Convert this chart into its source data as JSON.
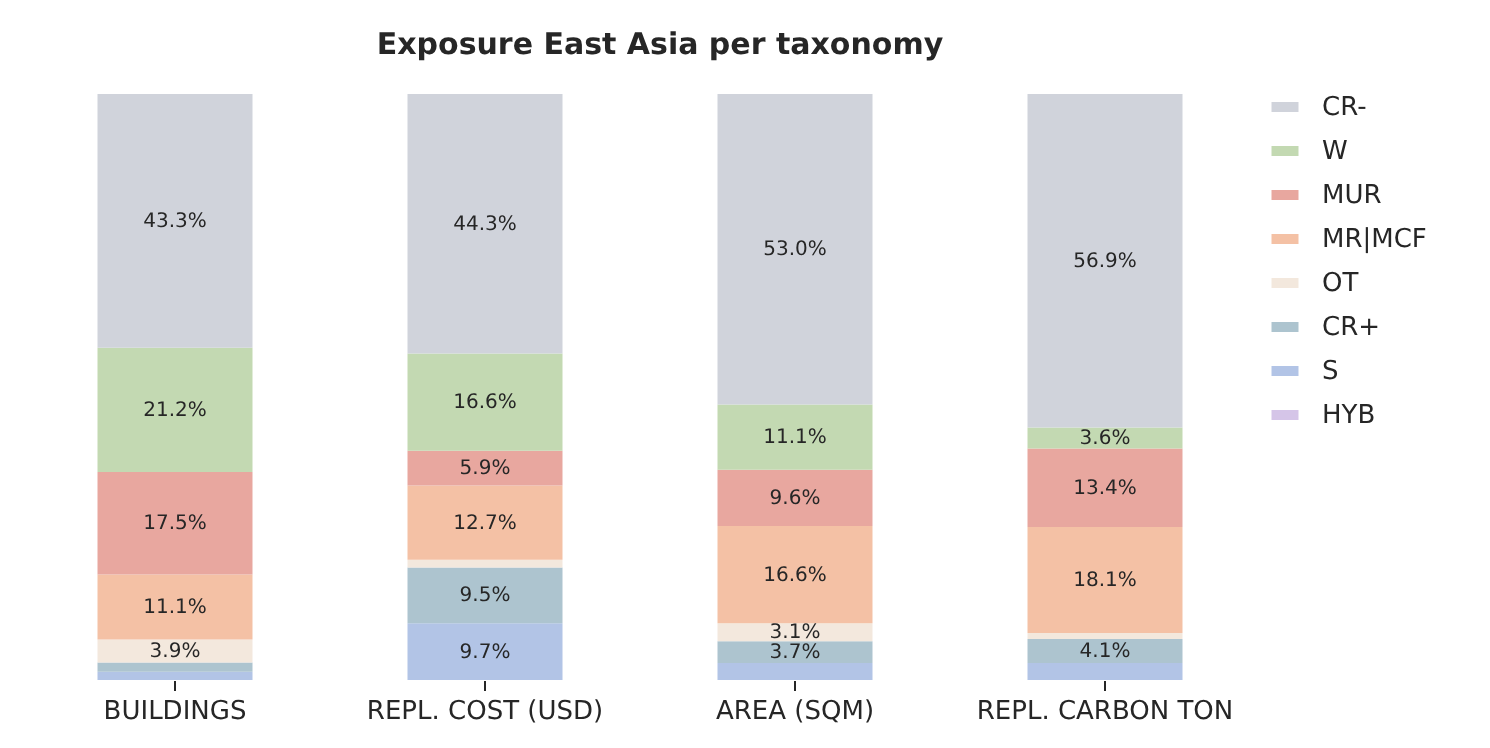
{
  "chart_data": {
    "type": "bar",
    "title": "Exposure East Asia per taxonomy",
    "categories": [
      "BUILDINGS",
      "REPL. COST (USD)",
      "AREA (SQM)",
      "REPL. CARBON TON"
    ],
    "stacked": true,
    "ylim": [
      0,
      100
    ],
    "tick_labels": "x",
    "legend": "top right",
    "series": [
      {
        "name": "HYB",
        "color": "#d5c5e8",
        "values": [
          0,
          0,
          0,
          0
        ],
        "value_labels": [
          null,
          null,
          null,
          null
        ]
      },
      {
        "name": "S",
        "color": "#b2c4e6",
        "values": [
          1.4,
          9.7,
          2.9,
          2.9
        ],
        "value_labels": [
          null,
          "9.7%",
          null,
          null
        ]
      },
      {
        "name": "CR+",
        "color": "#adc4cf",
        "values": [
          1.6,
          9.5,
          3.7,
          4.1
        ],
        "value_labels": [
          null,
          "9.5%",
          "3.7%",
          "4.1%"
        ]
      },
      {
        "name": "OT",
        "color": "#f3e8dd",
        "values": [
          3.9,
          1.3,
          3.1,
          1.0
        ],
        "value_labels": [
          "3.9%",
          null,
          "3.1%",
          null
        ]
      },
      {
        "name": "MR|MCF",
        "color": "#f4c1a5",
        "values": [
          11.1,
          12.7,
          16.6,
          18.1
        ],
        "value_labels": [
          "11.1%",
          "12.7%",
          "16.6%",
          "18.1%"
        ]
      },
      {
        "name": "MUR",
        "color": "#e8a79f",
        "values": [
          17.5,
          5.9,
          9.6,
          13.4
        ],
        "value_labels": [
          "17.5%",
          "5.9%",
          "9.6%",
          "13.4%"
        ]
      },
      {
        "name": "W",
        "color": "#c3d9b2",
        "values": [
          21.2,
          16.6,
          11.1,
          3.6
        ],
        "value_labels": [
          "21.2%",
          "16.6%",
          "11.1%",
          "3.6%"
        ]
      },
      {
        "name": "CR-",
        "color": "#d0d3db",
        "values": [
          43.3,
          44.3,
          53.0,
          56.9
        ],
        "value_labels": [
          "43.3%",
          "44.3%",
          "53.0%",
          "56.9%"
        ]
      }
    ]
  }
}
